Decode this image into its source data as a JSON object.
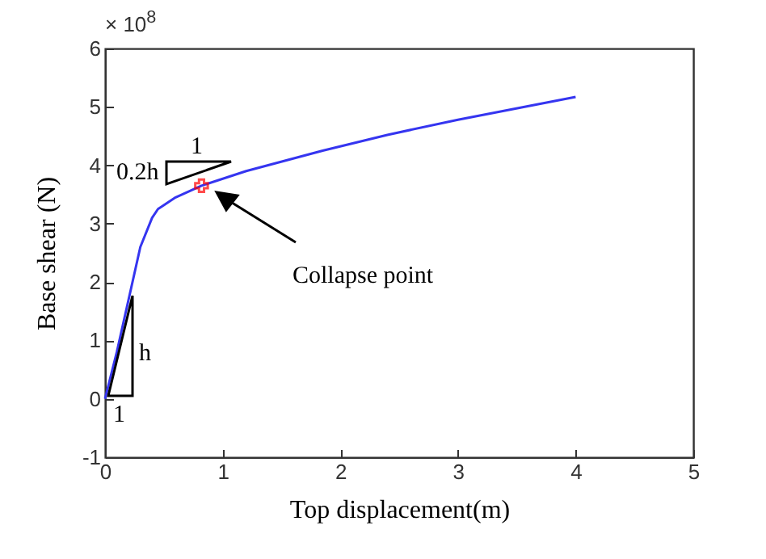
{
  "chart_data": {
    "type": "line",
    "xlabel": "Top displacement(m)",
    "ylabel": "Base shear (N)",
    "xlim": [
      0,
      5
    ],
    "xticks": [
      0,
      1,
      2,
      3,
      4,
      5
    ],
    "ylim": [
      -1,
      6
    ],
    "yticks": [
      -1,
      0,
      1,
      2,
      3,
      4,
      5,
      6
    ],
    "grid": false,
    "annotations": [
      "× 10$^{8}$",
      "Collapse point",
      "1",
      "h",
      "0.2h",
      "1"
    ],
    "series": [
      {
        "color": "#3535f0",
        "marker": "none",
        "line_style": "solid",
        "x": [
          0,
          0.1,
          0.2,
          0.3,
          0.4,
          0.45,
          0.6,
          0.82,
          1.2,
          1.85,
          2.4,
          3,
          4
        ],
        "values": [
          0,
          0.8,
          1.7,
          2.6,
          3.1,
          3.25,
          3.45,
          3.65,
          3.9,
          4.25,
          4.52,
          4.78,
          5.17
        ]
      },
      {
        "type": "scatter",
        "color": "#ff0000",
        "marker": "cross",
        "x": [
          0.82
        ],
        "values": [
          3.65
        ]
      }
    ]
  }
}
